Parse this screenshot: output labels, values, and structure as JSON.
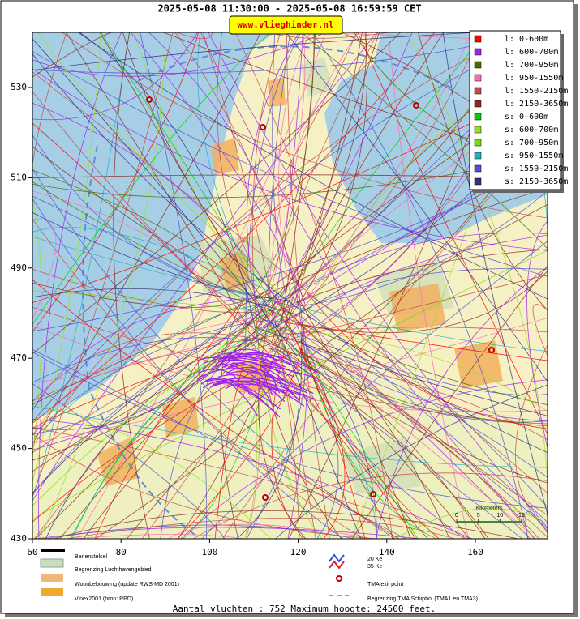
{
  "header": {
    "title": "2025-05-08 11:30:00 - 2025-05-08 16:59:59 CET",
    "badge": "www.vlieghinder.nl"
  },
  "map": {
    "xticks": [
      60,
      80,
      100,
      120,
      140,
      160
    ],
    "yticks": [
      430,
      450,
      470,
      490,
      510,
      530
    ]
  },
  "legend": [
    {
      "label": "l: 0-600m",
      "color": "#ff0000"
    },
    {
      "label": "l: 600-700m",
      "color": "#a020f0"
    },
    {
      "label": "l: 700-950m",
      "color": "#4a6b00"
    },
    {
      "label": "l: 950-1550m",
      "color": "#ff69b4"
    },
    {
      "label": "l: 1550-2150m",
      "color": "#c84848"
    },
    {
      "label": "l: 2150-3650m",
      "color": "#8b2a20"
    },
    {
      "label": "s: 0-600m",
      "color": "#00d000"
    },
    {
      "label": "s: 600-700m",
      "color": "#98e020"
    },
    {
      "label": "s: 700-950m",
      "color": "#70e000"
    },
    {
      "label": "s: 950-1550m",
      "color": "#20b0c0"
    },
    {
      "label": "s: 1550-2150m",
      "color": "#5050d0"
    },
    {
      "label": "s: 2150-3650m",
      "color": "#303080"
    }
  ],
  "scale": {
    "title": "Kilometers",
    "ticks": [
      0,
      5,
      10,
      15
    ]
  },
  "key": {
    "runways": "Banenstelsel",
    "airport": "Begrenzing Luchthavengebied",
    "urban": "Woonbebouwing (update RWS-MD 2001)",
    "vinex": "Vinex2001 (bron: RPD)",
    "ke20": "20 Ke",
    "ke35": "35 Ke",
    "exit": "TMA exit point",
    "tma": "Begrenzing TMA Schiphol  (TMA1 en TMA3)"
  },
  "footer": "Aantal vluchten : 752 Maximum hoogte: 24500 feet."
}
